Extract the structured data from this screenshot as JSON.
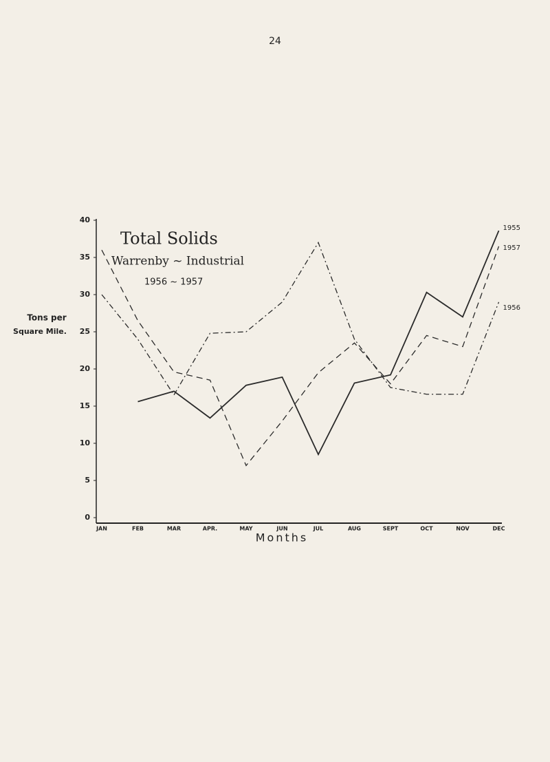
{
  "page_number": "24",
  "chart_data": {
    "type": "line",
    "title": "Total Solids",
    "subtitle": "Warrenby ~ Industrial",
    "subtitle2": "1956 ~ 1957",
    "y_label": [
      "Tons per",
      "Square Mile."
    ],
    "x_label": "Months",
    "categories": [
      "JAN",
      "FEB",
      "MAR",
      "APR.",
      "MAY",
      "JUN",
      "JUL",
      "AUG",
      "SEPT",
      "OCT",
      "NOV",
      "DEC"
    ],
    "ylim": [
      0,
      40
    ],
    "yticks": [
      0,
      5,
      10,
      15,
      20,
      25,
      30,
      35,
      40
    ],
    "series": [
      {
        "name": "1955",
        "color": "#2a2a2a",
        "style": "solid",
        "values": [
          null,
          15.6,
          17,
          13.4,
          17.8,
          18.9,
          8.5,
          18.1,
          19.2,
          30.3,
          27,
          38.6
        ]
      },
      {
        "name": "1957",
        "color": "#2a2a2a",
        "style": "dashed",
        "values": [
          36,
          26.5,
          19.6,
          18.5,
          7,
          13,
          19.5,
          23.5,
          18,
          24.5,
          23,
          36.5
        ]
      },
      {
        "name": "1956",
        "color": "#2a2a2a",
        "style": "dash-dot",
        "values": [
          30,
          24,
          16.5,
          24.8,
          25,
          29,
          37,
          24,
          17.5,
          16.6,
          16.6,
          29
        ]
      }
    ]
  }
}
